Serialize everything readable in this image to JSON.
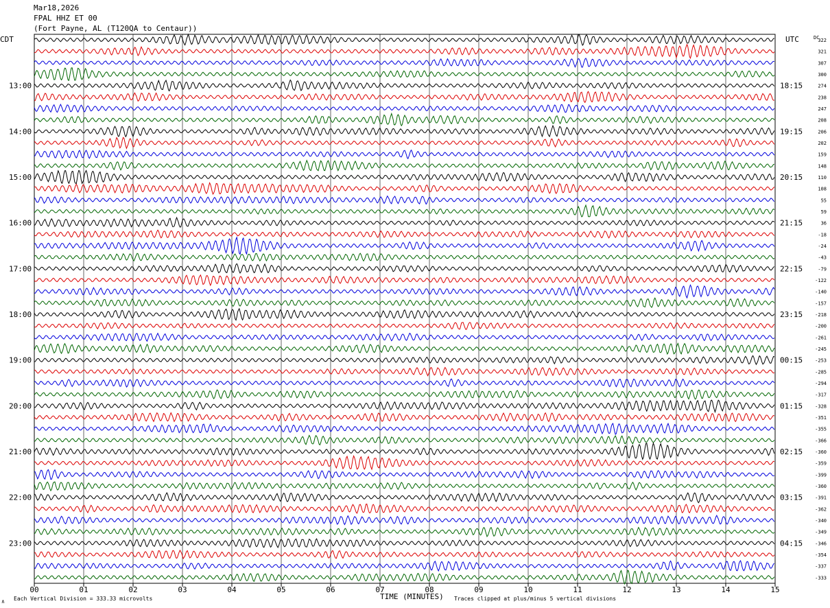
{
  "header": {
    "date": "Mar18,2026",
    "station": "FPAL HHZ ET 00",
    "location": "(Fort Payne, AL (T120QA to Centaur))"
  },
  "left_tz": "CDT",
  "right_tz": "UTC",
  "dc_label": "DC",
  "footer": {
    "scale_note": "Each Vertical Division =  333.33 microvolts",
    "clip_note": "Traces clipped at plus/minus 5 vertical divisions",
    "mark": "∧"
  },
  "colors": {
    "background": "#ffffff",
    "grid": "#000000",
    "trace_cycle": [
      "#000000",
      "#dd0000",
      "#0000dd",
      "#006600"
    ]
  },
  "chart_data": {
    "type": "line",
    "title": "FPAL HHZ ET 00",
    "xlabel": "TIME (MINUTES)",
    "ylabel": "",
    "x_ticks": [
      "00",
      "01",
      "02",
      "03",
      "04",
      "05",
      "06",
      "07",
      "08",
      "09",
      "10",
      "11",
      "12",
      "13",
      "14",
      "15"
    ],
    "xlim": [
      0,
      15
    ],
    "rows_per_hour": 4,
    "minutes_per_row": 15,
    "left_hour_labels": [
      "13:00",
      "14:00",
      "15:00",
      "16:00",
      "17:00",
      "18:00",
      "19:00",
      "20:00",
      "21:00",
      "22:00",
      "23:00"
    ],
    "right_hour_labels": [
      "18:15",
      "19:15",
      "20:15",
      "21:15",
      "22:15",
      "23:15",
      "00:15",
      "01:15",
      "02:15",
      "03:15",
      "04:15"
    ],
    "first_labeled_row": 4,
    "dc_offsets": [
      322,
      321,
      307,
      300,
      274,
      238,
      247,
      208,
      206,
      202,
      159,
      148,
      110,
      108,
      55,
      59,
      36,
      -18,
      -24,
      -43,
      -79,
      -122,
      -140,
      -157,
      -218,
      -200,
      -261,
      -245,
      -253,
      -285,
      -294,
      -317,
      -328,
      -351,
      -355,
      -366,
      -360,
      -359,
      -399,
      -360,
      -391,
      -362,
      -340,
      -349,
      -346,
      -354,
      -337,
      -333
    ],
    "series": [
      {
        "color": "#000000"
      },
      {
        "color": "#dd0000"
      },
      {
        "color": "#0000dd"
      },
      {
        "color": "#006600"
      }
    ],
    "grid": true
  }
}
